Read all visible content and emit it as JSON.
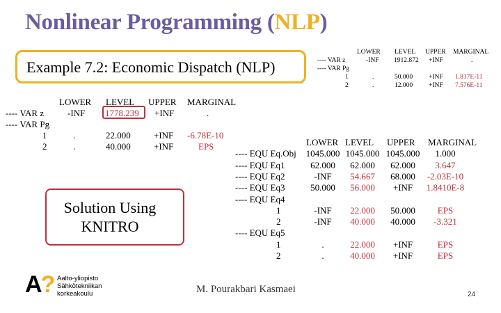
{
  "title": {
    "main": "Nonlinear Programming (",
    "nlp": "NLP",
    "close": ")"
  },
  "example_label": "Example 7.2: Economic Dispatch (NLP)",
  "solution_label_line1": "Solution Using",
  "solution_label_line2": "KNITRO",
  "left_table": {
    "headers": [
      "LOWER",
      "LEVEL",
      "UPPER",
      "MARGINAL"
    ],
    "var_z": {
      "name": "---- VAR z",
      "lower": "-INF",
      "level": "1778.239",
      "upper": "+INF",
      "marginal": "."
    },
    "var_pg": {
      "name": "---- VAR Pg"
    },
    "rows": [
      {
        "idx": "1",
        "lower": ".",
        "level": "22.000",
        "upper": "+INF",
        "marginal": "-6.78E-10"
      },
      {
        "idx": "2",
        "lower": ".",
        "level": "40.000",
        "upper": "+INF",
        "marginal": "EPS"
      }
    ]
  },
  "top_right_table": {
    "headers": [
      "LOWER",
      "LEVEL",
      "UPPER",
      "MARGINAL"
    ],
    "var_z": {
      "name": "---- VAR z",
      "lower": "-INF",
      "level": "1912.872",
      "upper": "+INF",
      "marginal": "."
    },
    "var_pg": {
      "name": "---- VAR Pg"
    },
    "rows": [
      {
        "idx": "1",
        "lower": ".",
        "level": "50.000",
        "upper": "+INF",
        "marginal": "1.817E-11"
      },
      {
        "idx": "2",
        "lower": ".",
        "level": "12.000",
        "upper": "+INF",
        "marginal": "7.576E-11"
      }
    ]
  },
  "equ_table": {
    "headers": [
      "LOWER",
      "LEVEL",
      "UPPER",
      "MARGINAL"
    ],
    "rows": [
      {
        "name": "---- EQU Eq.Obj",
        "lower": "1045.000",
        "level": "1045.000",
        "upper": "1045.000",
        "marginal": "1.000"
      },
      {
        "name": "---- EQU Eq1",
        "lower": "62.000",
        "level": "62.000",
        "upper": "62.000",
        "marginal": "3.647"
      },
      {
        "name": "---- EQU Eq2",
        "lower": "-INF",
        "level": "54.667",
        "upper": "68.000",
        "marginal": "-2.03E-10"
      },
      {
        "name": "---- EQU Eq3",
        "lower": "50.000",
        "level": "56.000",
        "upper": "+INF",
        "marginal": "1.8410E-8"
      },
      {
        "name": "---- EQU Eq4",
        "lower": "",
        "level": "",
        "upper": "",
        "marginal": ""
      },
      {
        "name": "1",
        "lower": "-INF",
        "level": "22.000",
        "upper": "50.000",
        "marginal": "EPS"
      },
      {
        "name": "2",
        "lower": "-INF",
        "level": "40.000",
        "upper": "40.000",
        "marginal": "-3.321"
      },
      {
        "name": "---- EQU Eq5",
        "lower": "",
        "level": "",
        "upper": "",
        "marginal": ""
      },
      {
        "name": "1",
        "lower": ".",
        "level": "22.000",
        "upper": "+INF",
        "marginal": "EPS"
      },
      {
        "name": "2",
        "lower": ".",
        "level": "40.000",
        "upper": "+INF",
        "marginal": "EPS"
      }
    ]
  },
  "logo": {
    "mark_a": "A",
    "mark_q": "?",
    "line1": "Aalto-yliopisto",
    "line2": "Sähkötekniikan",
    "line3": "korkeakoulu"
  },
  "author": "M. Pourakbari Kasmaei",
  "page_number": "24",
  "colors": {
    "title": "#6b5c9e",
    "accent": "#f0b020",
    "highlight": "#c0303a"
  }
}
